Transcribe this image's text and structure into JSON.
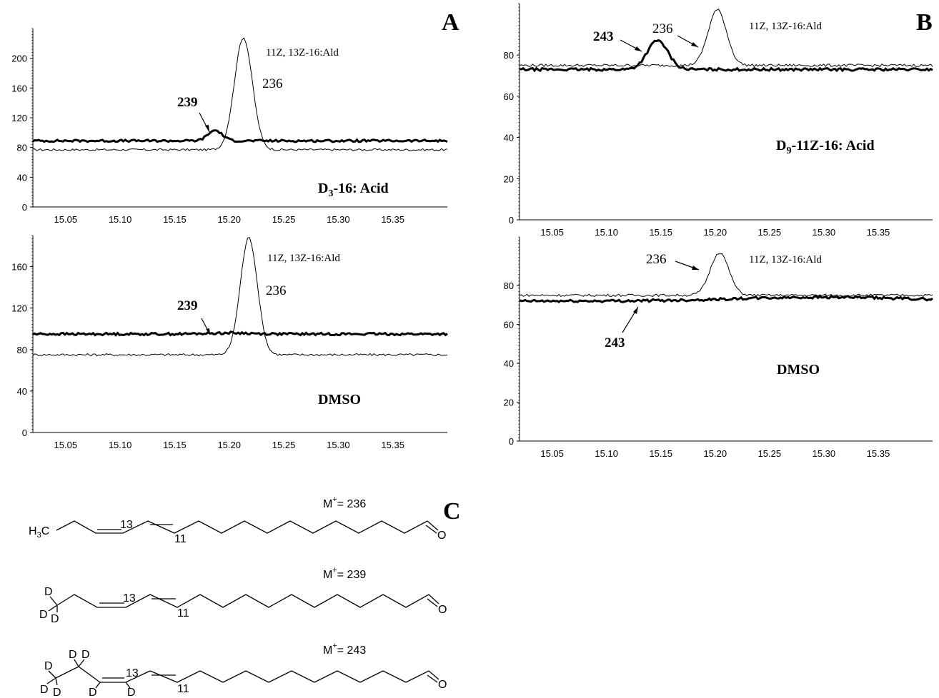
{
  "panel_letters": {
    "a": "A",
    "b": "B",
    "c": "C"
  },
  "chart_data": [
    {
      "id": "A_top",
      "type": "line",
      "xlim": [
        15.02,
        15.4
      ],
      "ylim": [
        0,
        240
      ],
      "x_ticks": [
        "15.05",
        "15.10",
        "15.15",
        "15.20",
        "15.25",
        "15.30",
        "15.35"
      ],
      "y_ticks": [
        "0",
        "40",
        "80",
        "120",
        "160",
        "200"
      ],
      "series": [
        {
          "weight": "thin",
          "baseline": 77,
          "peak_x": 15.213,
          "peak_y": 228,
          "peak_width": 0.0082
        },
        {
          "weight": "bold",
          "baseline": 89,
          "peak_x": 15.187,
          "peak_y": 103,
          "peak_width": 0.0065
        }
      ],
      "labels": {
        "compound": "11Z, 13Z-16:Ald",
        "ion_thin": "236",
        "ion_bold": "239",
        "condition": "D3-16: Acid"
      }
    },
    {
      "id": "A_bottom",
      "type": "line",
      "xlim": [
        15.02,
        15.4
      ],
      "ylim": [
        0,
        190
      ],
      "x_ticks": [
        "15.05",
        "15.10",
        "15.15",
        "15.20",
        "15.25",
        "15.30",
        "15.35"
      ],
      "y_ticks": [
        "0",
        "40",
        "80",
        "120",
        "160"
      ],
      "series": [
        {
          "weight": "thin",
          "baseline": 75,
          "peak_x": 15.218,
          "peak_y": 188,
          "peak_width": 0.0078
        },
        {
          "weight": "bold",
          "baseline": 95,
          "peak_x": 15.2,
          "peak_y": 96,
          "peak_width": 0.02
        }
      ],
      "labels": {
        "compound": "11Z, 13Z-16:Ald",
        "ion_thin": "236",
        "ion_bold": "239",
        "condition": "DMSO"
      }
    },
    {
      "id": "B_top",
      "type": "line",
      "xlim": [
        15.02,
        15.4
      ],
      "ylim": [
        0,
        105
      ],
      "x_ticks": [
        "15.05",
        "15.10",
        "15.15",
        "15.20",
        "15.25",
        "15.30",
        "15.35"
      ],
      "y_ticks": [
        "0",
        "20",
        "40",
        "60",
        "80"
      ],
      "series": [
        {
          "weight": "thin",
          "baseline": 75,
          "peak_x": 15.202,
          "peak_y": 102,
          "peak_width": 0.0085
        },
        {
          "weight": "bold",
          "baseline": 73,
          "peak_x": 15.147,
          "peak_y": 87,
          "peak_width": 0.0095
        }
      ],
      "labels": {
        "compound": "11Z, 13Z-16:Ald",
        "ion_thin": "236",
        "ion_bold": "243",
        "condition": "D9-11Z-16: Acid"
      }
    },
    {
      "id": "B_bottom",
      "type": "line",
      "xlim": [
        15.02,
        15.4
      ],
      "ylim": [
        0,
        105
      ],
      "x_ticks": [
        "15.05",
        "15.10",
        "15.15",
        "15.20",
        "15.25",
        "15.30",
        "15.35"
      ],
      "y_ticks": [
        "0",
        "20",
        "40",
        "60",
        "80"
      ],
      "series": [
        {
          "weight": "thin",
          "baseline": 75,
          "peak_x": 15.204,
          "peak_y": 97,
          "peak_width": 0.0085
        },
        {
          "weight": "bold",
          "baseline": 72,
          "peak_x": 15.3,
          "peak_y": 74,
          "peak_width": 0.08
        }
      ],
      "labels": {
        "compound": "11Z, 13Z-16:Ald",
        "ion_thin": "236",
        "ion_bold": "243",
        "condition": "DMSO"
      }
    }
  ],
  "structures": {
    "s236": {
      "mass": "M+ = 236",
      "m": "M",
      "plus": "+",
      "eq": "= 236",
      "left": "H3C",
      "pos13": "13",
      "pos11": "11",
      "o": "O"
    },
    "s239": {
      "mass": "M+ = 239",
      "m": "M",
      "plus": "+",
      "eq": "= 239",
      "d": "D",
      "pos13": "13",
      "pos11": "11",
      "o": "O"
    },
    "s243": {
      "mass": "M+ = 243",
      "m": "M",
      "plus": "+",
      "eq": "= 243",
      "d": "D",
      "pos13": "13",
      "pos11": "11",
      "o": "O"
    }
  }
}
